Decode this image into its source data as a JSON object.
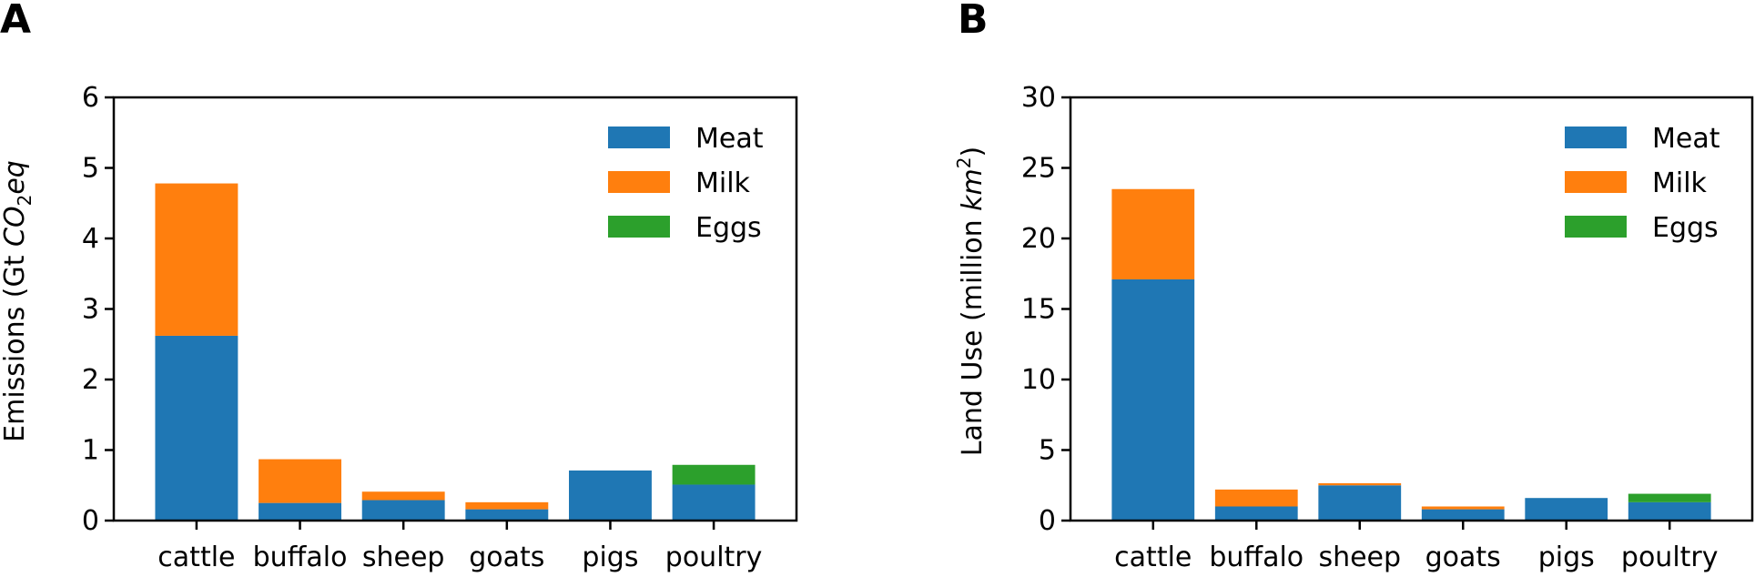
{
  "colors": {
    "Meat": "#1f77b4",
    "Milk": "#ff7f0e",
    "Eggs": "#2ca02c"
  },
  "chart_data": [
    {
      "type": "bar",
      "stacked": true,
      "panel_label": "A",
      "categories": [
        "cattle",
        "buffalo",
        "sheep",
        "goats",
        "pigs",
        "poultry"
      ],
      "series": [
        {
          "name": "Meat",
          "values": [
            2.62,
            0.25,
            0.29,
            0.16,
            0.71,
            0.51
          ]
        },
        {
          "name": "Milk",
          "values": [
            2.16,
            0.62,
            0.12,
            0.1,
            0.0,
            0.0
          ]
        },
        {
          "name": "Eggs",
          "values": [
            0.0,
            0.0,
            0.0,
            0.0,
            0.0,
            0.28
          ]
        }
      ],
      "ylabel_prefix": "Emissions (Gt ",
      "ylabel_math": "CO",
      "ylabel_sub": "2",
      "ylabel_math2": "eq",
      "ylim": [
        0,
        6
      ],
      "yticks": [
        "0",
        "1",
        "2",
        "3",
        "4",
        "5",
        "6"
      ],
      "legend": [
        "Meat",
        "Milk",
        "Eggs"
      ],
      "legend_position": "top-right"
    },
    {
      "type": "bar",
      "stacked": true,
      "panel_label": "B",
      "categories": [
        "cattle",
        "buffalo",
        "sheep",
        "goats",
        "pigs",
        "poultry"
      ],
      "series": [
        {
          "name": "Meat",
          "values": [
            17.1,
            1.0,
            2.5,
            0.8,
            1.6,
            1.3
          ]
        },
        {
          "name": "Milk",
          "values": [
            6.4,
            1.2,
            0.15,
            0.2,
            0.0,
            0.0
          ]
        },
        {
          "name": "Eggs",
          "values": [
            0.0,
            0.0,
            0.0,
            0.0,
            0.0,
            0.6
          ]
        }
      ],
      "ylabel_prefix": "Land Use (million ",
      "ylabel_math": "km",
      "ylabel_sup": "2",
      "ylim": [
        0,
        30
      ],
      "yticks": [
        "0",
        "5",
        "10",
        "15",
        "20",
        "25",
        "30"
      ],
      "legend": [
        "Meat",
        "Milk",
        "Eggs"
      ],
      "legend_position": "top-right"
    }
  ]
}
